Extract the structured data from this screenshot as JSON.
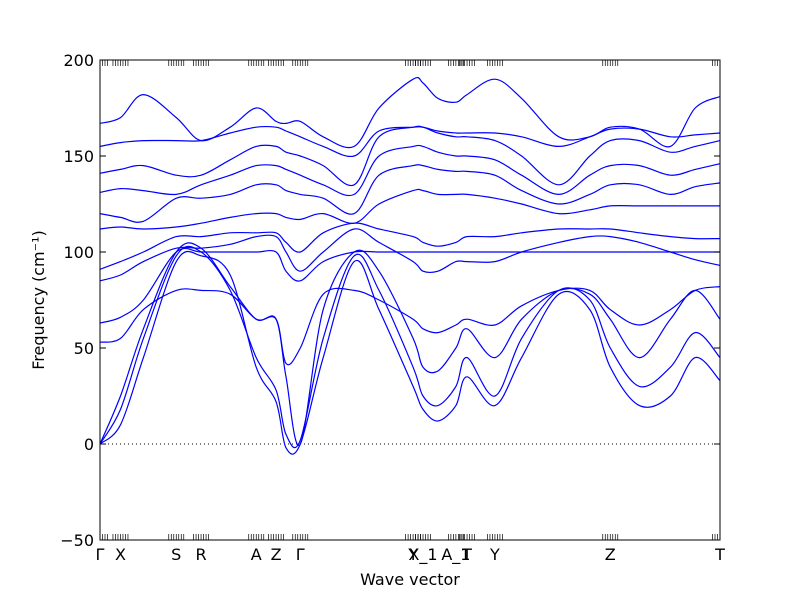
{
  "chart_data": {
    "type": "line",
    "xlabel": "Wave vector",
    "ylabel": "Frequency (cm⁻¹)",
    "ylim": [
      -50,
      200
    ],
    "xlim": [
      0,
      1
    ],
    "y_ticks": [
      -50,
      0,
      50,
      100,
      150,
      200
    ],
    "x_ticks": [
      {
        "label": "Γ",
        "x": 0.0
      },
      {
        "label": "X",
        "x": 0.033
      },
      {
        "label": "S",
        "x": 0.123
      },
      {
        "label": "R",
        "x": 0.163
      },
      {
        "label": "A",
        "x": 0.252
      },
      {
        "label": "Z",
        "x": 0.284
      },
      {
        "label": "Γ",
        "x": 0.323
      },
      {
        "label": "Y",
        "x": 0.505
      },
      {
        "label": "X_1",
        "x": 0.521
      },
      {
        "label": "A_1",
        "x": 0.574
      },
      {
        "label": "T",
        "x": 0.592
      },
      {
        "label": "Y",
        "x": 0.637
      },
      {
        "label": "Z",
        "x": 0.823
      },
      {
        "label": "T",
        "x": 1.0
      }
    ],
    "zero_line": 0,
    "line_color": "#0000ff",
    "series": [
      {
        "x": [
          0,
          0.033,
          0.07,
          0.123,
          0.163,
          0.21,
          0.252,
          0.284,
          0.3,
          0.323,
          0.36,
          0.41,
          0.45,
          0.505,
          0.521,
          0.545,
          0.574,
          0.592,
          0.637,
          0.68,
          0.74,
          0.79,
          0.823,
          0.87,
          0.92,
          0.96,
          1.0
        ],
        "y": [
          0,
          10,
          45,
          95,
          98,
          88,
          40,
          22,
          -2,
          0,
          45,
          95,
          70,
          30,
          18,
          12,
          20,
          35,
          20,
          45,
          78,
          70,
          40,
          20,
          25,
          45,
          33
        ]
      },
      {
        "x": [
          0,
          0.033,
          0.07,
          0.123,
          0.163,
          0.21,
          0.252,
          0.284,
          0.3,
          0.323,
          0.36,
          0.41,
          0.45,
          0.505,
          0.521,
          0.545,
          0.574,
          0.592,
          0.637,
          0.68,
          0.74,
          0.79,
          0.823,
          0.87,
          0.92,
          0.96,
          1.0
        ],
        "y": [
          0,
          18,
          55,
          98,
          100,
          80,
          45,
          28,
          5,
          2,
          55,
          98,
          80,
          40,
          25,
          20,
          30,
          45,
          25,
          55,
          80,
          75,
          50,
          30,
          40,
          58,
          45
        ]
      },
      {
        "x": [
          0,
          0.033,
          0.07,
          0.123,
          0.163,
          0.21,
          0.252,
          0.284,
          0.3,
          0.323,
          0.36,
          0.41,
          0.45,
          0.505,
          0.521,
          0.545,
          0.574,
          0.592,
          0.637,
          0.68,
          0.74,
          0.79,
          0.823,
          0.87,
          0.92,
          0.96,
          1.0
        ],
        "y": [
          0,
          25,
          60,
          100,
          102,
          82,
          65,
          65,
          35,
          0,
          70,
          100,
          90,
          55,
          40,
          38,
          50,
          60,
          45,
          65,
          80,
          78,
          65,
          45,
          65,
          80,
          65
        ]
      },
      {
        "x": [
          0,
          0.033,
          0.07,
          0.123,
          0.163,
          0.21,
          0.252,
          0.284,
          0.3,
          0.323,
          0.36,
          0.41,
          0.45,
          0.505,
          0.521,
          0.545,
          0.574,
          0.592,
          0.637,
          0.68,
          0.74,
          0.79,
          0.823,
          0.87,
          0.92,
          0.96,
          1.0
        ],
        "y": [
          53,
          55,
          70,
          80,
          80,
          78,
          65,
          65,
          42,
          50,
          78,
          80,
          75,
          65,
          60,
          58,
          62,
          65,
          62,
          72,
          80,
          80,
          70,
          62,
          70,
          80,
          82
        ]
      },
      {
        "x": [
          0,
          0.033,
          0.07,
          0.123,
          0.163,
          0.21,
          0.252,
          0.284,
          0.3,
          0.323,
          0.36,
          0.41,
          0.45,
          0.505,
          0.521,
          0.545,
          0.574,
          0.592,
          0.637,
          0.68,
          0.74,
          0.79,
          0.823,
          0.87,
          0.92,
          0.96,
          1.0
        ],
        "y": [
          63,
          66,
          75,
          100,
          100,
          100,
          100,
          100,
          90,
          85,
          95,
          100,
          100,
          100,
          100,
          100,
          100,
          100,
          100,
          100,
          100,
          100,
          100,
          100,
          100,
          100,
          100
        ]
      },
      {
        "x": [
          0,
          0.033,
          0.07,
          0.123,
          0.163,
          0.21,
          0.252,
          0.284,
          0.3,
          0.323,
          0.36,
          0.41,
          0.45,
          0.505,
          0.521,
          0.545,
          0.574,
          0.592,
          0.637,
          0.68,
          0.74,
          0.79,
          0.823,
          0.87,
          0.92,
          0.96,
          1.0
        ],
        "y": [
          85,
          88,
          95,
          102,
          102,
          104,
          108,
          108,
          100,
          90,
          100,
          112,
          105,
          95,
          90,
          90,
          95,
          95,
          95,
          100,
          105,
          108,
          108,
          105,
          100,
          96,
          93
        ]
      },
      {
        "x": [
          0,
          0.033,
          0.07,
          0.123,
          0.163,
          0.21,
          0.252,
          0.284,
          0.3,
          0.323,
          0.36,
          0.41,
          0.45,
          0.505,
          0.521,
          0.545,
          0.574,
          0.592,
          0.637,
          0.68,
          0.74,
          0.79,
          0.823,
          0.87,
          0.92,
          0.96,
          1.0
        ],
        "y": [
          91,
          95,
          100,
          108,
          108,
          110,
          110,
          110,
          105,
          100,
          110,
          115,
          112,
          108,
          105,
          103,
          105,
          108,
          108,
          110,
          112,
          112,
          112,
          110,
          108,
          107,
          107
        ]
      },
      {
        "x": [
          0,
          0.033,
          0.07,
          0.123,
          0.163,
          0.21,
          0.252,
          0.284,
          0.3,
          0.323,
          0.36,
          0.41,
          0.45,
          0.505,
          0.521,
          0.545,
          0.574,
          0.592,
          0.637,
          0.68,
          0.74,
          0.79,
          0.823,
          0.87,
          0.92,
          0.96,
          1.0
        ],
        "y": [
          112,
          113,
          112,
          113,
          115,
          118,
          120,
          120,
          118,
          117,
          120,
          115,
          125,
          132,
          132,
          130,
          130,
          130,
          128,
          125,
          120,
          122,
          124,
          124,
          124,
          124,
          124
        ]
      },
      {
        "x": [
          0,
          0.033,
          0.07,
          0.123,
          0.163,
          0.21,
          0.252,
          0.284,
          0.3,
          0.323,
          0.36,
          0.41,
          0.45,
          0.505,
          0.521,
          0.545,
          0.574,
          0.592,
          0.637,
          0.68,
          0.74,
          0.79,
          0.823,
          0.87,
          0.92,
          0.96,
          1.0
        ],
        "y": [
          120,
          118,
          116,
          128,
          128,
          130,
          135,
          135,
          132,
          130,
          128,
          120,
          140,
          145,
          145,
          143,
          142,
          142,
          140,
          132,
          125,
          130,
          135,
          135,
          130,
          134,
          136
        ]
      },
      {
        "x": [
          0,
          0.033,
          0.07,
          0.123,
          0.163,
          0.21,
          0.252,
          0.284,
          0.3,
          0.323,
          0.36,
          0.41,
          0.45,
          0.505,
          0.521,
          0.545,
          0.574,
          0.592,
          0.637,
          0.68,
          0.74,
          0.79,
          0.823,
          0.87,
          0.92,
          0.96,
          1.0
        ],
        "y": [
          131,
          133,
          132,
          130,
          135,
          140,
          145,
          145,
          143,
          140,
          135,
          130,
          150,
          155,
          155,
          152,
          150,
          150,
          148,
          140,
          130,
          140,
          145,
          145,
          140,
          143,
          146
        ]
      },
      {
        "x": [
          0,
          0.033,
          0.07,
          0.123,
          0.163,
          0.21,
          0.252,
          0.284,
          0.3,
          0.323,
          0.36,
          0.41,
          0.45,
          0.505,
          0.521,
          0.545,
          0.574,
          0.592,
          0.637,
          0.68,
          0.74,
          0.79,
          0.823,
          0.87,
          0.92,
          0.96,
          1.0
        ],
        "y": [
          141,
          143,
          145,
          140,
          140,
          148,
          155,
          155,
          152,
          150,
          145,
          135,
          160,
          165,
          165,
          162,
          160,
          160,
          158,
          150,
          135,
          150,
          158,
          158,
          152,
          155,
          158
        ]
      },
      {
        "x": [
          0,
          0.033,
          0.07,
          0.123,
          0.163,
          0.21,
          0.252,
          0.284,
          0.3,
          0.323,
          0.36,
          0.41,
          0.45,
          0.505,
          0.521,
          0.545,
          0.574,
          0.592,
          0.637,
          0.68,
          0.74,
          0.79,
          0.823,
          0.87,
          0.92,
          0.96,
          1.0
        ],
        "y": [
          155,
          157,
          158,
          158,
          158,
          162,
          165,
          165,
          163,
          160,
          155,
          150,
          163,
          165,
          165,
          163,
          162,
          162,
          162,
          160,
          155,
          160,
          164,
          164,
          160,
          161,
          162
        ]
      },
      {
        "x": [
          0,
          0.033,
          0.07,
          0.123,
          0.163,
          0.21,
          0.252,
          0.284,
          0.3,
          0.323,
          0.36,
          0.41,
          0.45,
          0.505,
          0.521,
          0.545,
          0.574,
          0.592,
          0.637,
          0.68,
          0.74,
          0.79,
          0.823,
          0.87,
          0.92,
          0.96,
          1.0
        ],
        "y": [
          167,
          170,
          182,
          170,
          158,
          165,
          175,
          168,
          167,
          168,
          160,
          155,
          175,
          190,
          188,
          180,
          178,
          182,
          190,
          180,
          160,
          160,
          165,
          164,
          155,
          175,
          181
        ]
      }
    ]
  }
}
